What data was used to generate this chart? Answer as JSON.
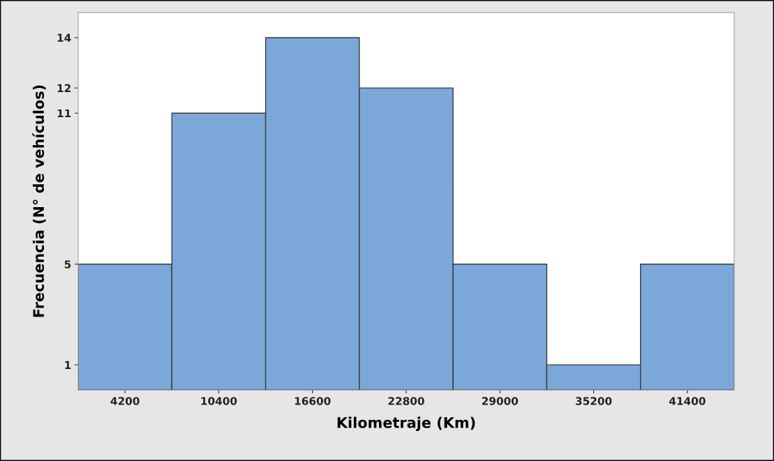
{
  "chart_data": {
    "type": "histogram",
    "xlabel": "Kilometraje (Km)",
    "ylabel": "Frecuencia (N° de vehículos)",
    "bins": [
      1100,
      7300,
      13500,
      19700,
      25900,
      32100,
      38300,
      44500
    ],
    "values": [
      5,
      11,
      14,
      12,
      5,
      1,
      5
    ],
    "color": "#7ba7d9",
    "xlim": [
      1100,
      44500
    ],
    "xticks": [
      4200,
      10400,
      16600,
      22800,
      29000,
      35200,
      41400
    ],
    "ylim": [
      0,
      15
    ],
    "yticks": [
      1,
      5,
      11,
      12,
      14
    ],
    "grid": false
  }
}
